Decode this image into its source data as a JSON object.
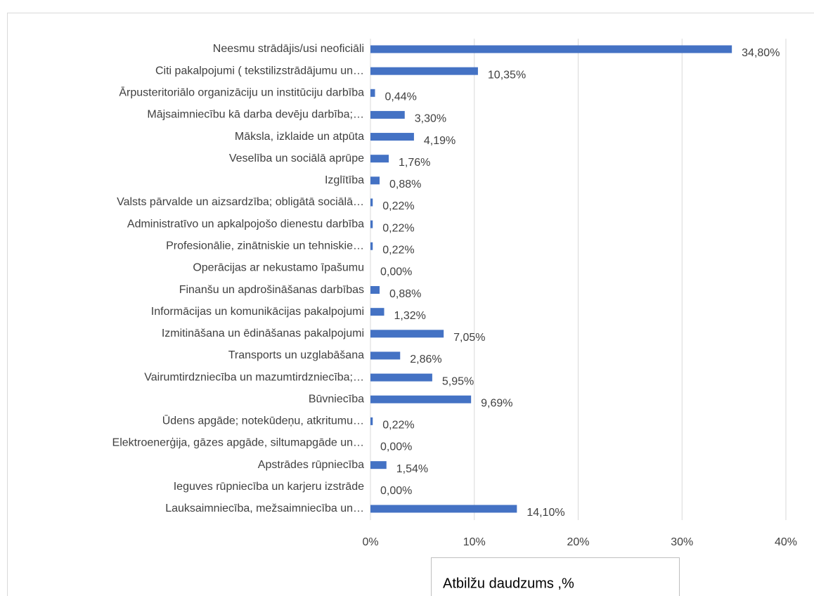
{
  "chart_data": {
    "type": "barh",
    "categories": [
      "Neesmu strādājis/usi neoficiāli",
      "Citi pakalpojumi ( tekstilizstrādājumu un…",
      "Ārpusteritoriālo organizāciju un institūciju darbība",
      "Mājsaimniecību kā darba devēju darbība;…",
      "Māksla, izklaide un atpūta",
      "Veselība un sociālā aprūpe",
      "Izglītība",
      "Valsts pārvalde un aizsardzība; obligātā sociālā…",
      "Administratīvo un apkalpojošo dienestu darbība",
      "Profesionālie, zinātniskie un tehniskie…",
      "Operācijas ar nekustamo īpašumu",
      "Finanšu un apdrošināšanas darbības",
      "Informācijas un komunikācijas pakalpojumi",
      "Izmitināšana un ēdināšanas pakalpojumi",
      "Transports un uzglabāšana",
      "Vairumtirdzniecība un mazumtirdzniecība;…",
      "Būvniecība",
      "Ūdens apgāde; notekūdeņu, atkritumu…",
      "Elektroenerģija, gāzes apgāde, siltumapgāde un…",
      "Apstrādes rūpniecība",
      "Ieguves rūpniecība un karjeru izstrāde",
      "Lauksaimniecība, mežsaimniecība un…"
    ],
    "series": [
      {
        "name": "Atbilžu  daudzums ,%",
        "color": "#4472c4",
        "values": [
          34.8,
          10.35,
          0.44,
          3.3,
          4.19,
          1.76,
          0.88,
          0.22,
          0.22,
          0.22,
          0.0,
          0.88,
          1.32,
          7.05,
          2.86,
          5.95,
          9.69,
          0.22,
          0.0,
          1.54,
          0.0,
          14.1
        ],
        "value_labels": [
          "34,80%",
          "10,35%",
          "0,44%",
          "3,30%",
          "4,19%",
          "1,76%",
          "0,88%",
          "0,22%",
          "0,22%",
          "0,22%",
          "0,00%",
          "0,88%",
          "1,32%",
          "7,05%",
          "2,86%",
          "5,95%",
          "9,69%",
          "0,22%",
          "0,00%",
          "1,54%",
          "0,00%",
          "14,10%"
        ]
      }
    ],
    "xlim": [
      0,
      40
    ],
    "xticks": [
      {
        "value": 0,
        "label": "0%"
      },
      {
        "value": 10,
        "label": "10%"
      },
      {
        "value": 20,
        "label": "20%"
      },
      {
        "value": 30,
        "label": "30%"
      },
      {
        "value": 40,
        "label": "40%"
      }
    ],
    "grid": true
  }
}
